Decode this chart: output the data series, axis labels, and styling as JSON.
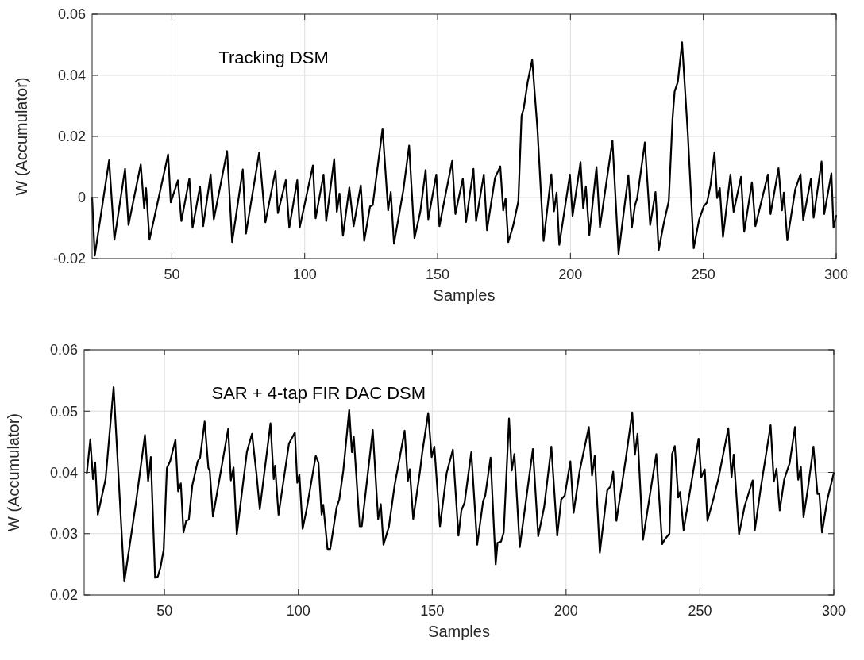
{
  "chart_data": [
    {
      "type": "line",
      "xlabel": "Samples",
      "ylabel": "W (Accumulator)",
      "annotations": [
        "Tracking DSM"
      ],
      "xlim": [
        20,
        300
      ],
      "xticks": [
        50,
        100,
        150,
        200,
        250,
        300
      ],
      "ylim": [
        -0.02,
        0.06
      ],
      "yticks": [
        -0.02,
        0,
        0.02,
        0.04,
        0.06
      ],
      "grid": true,
      "line_style": "solid",
      "marker": "none",
      "series": [
        {
          "color": "#000000",
          "x": [
            20,
            21,
            26.4,
            28.4,
            32.4,
            33.7,
            38.3,
            39.6,
            40.3,
            41.6,
            48.6,
            49.6,
            52.3,
            53.6,
            56.6,
            57.8,
            60.6,
            61.8,
            64.6,
            65.8,
            70.8,
            72.7,
            76.7,
            77.9,
            82.9,
            85.2,
            89,
            89.9,
            92.9,
            94.2,
            97.2,
            98.1,
            103.1,
            104.1,
            107.1,
            108.1,
            111.1,
            112.1,
            113.1,
            114.4,
            116.8,
            118.4,
            121.1,
            122.4,
            124.6,
            125.6,
            129.3,
            131.4,
            132.4,
            133.6,
            137.1,
            139.3,
            141.3,
            143.5,
            145.5,
            146.5,
            149.5,
            150.7,
            152.5,
            155.5,
            156.7,
            159.5,
            160.7,
            163.5,
            164.5,
            167.4,
            168.6,
            171.6,
            173.6,
            174.7,
            175.6,
            176.6,
            178.4,
            180.4,
            181.6,
            182.4,
            183.9,
            185.6,
            187.6,
            189.9,
            192.8,
            193.8,
            194.8,
            195.8,
            199.8,
            200.8,
            203.8,
            204.8,
            205.8,
            207.1,
            209.8,
            211.1,
            215.8,
            218.1,
            221.8,
            223.1,
            224.3,
            225.1,
            228,
            230,
            232,
            233.2,
            235.2,
            237,
            238.4,
            239.2,
            240.4,
            242,
            244.2,
            246.4,
            248.4,
            250.2,
            251.4,
            252.7,
            254.2,
            255.2,
            256.2,
            257.4,
            260.2,
            261.4,
            264.2,
            265.4,
            268.3,
            269.6,
            274.3,
            275.3,
            278.3,
            279.6,
            280.3,
            281.6,
            284.6,
            286.6,
            287.6,
            290.5,
            291.5,
            294.5,
            295.5,
            298.2,
            299,
            300
          ],
          "values": [
            0.0,
            -0.019,
            0.0122,
            -0.0138,
            0.0094,
            -0.009,
            0.0108,
            -0.0036,
            0.0031,
            -0.0138,
            0.0141,
            -0.0016,
            0.0056,
            -0.0077,
            0.0062,
            -0.0099,
            0.0036,
            -0.0094,
            0.0076,
            -0.0071,
            0.0152,
            -0.0146,
            0.0092,
            -0.0118,
            0.0148,
            -0.0081,
            0.0088,
            -0.0051,
            0.0057,
            -0.0099,
            0.0057,
            -0.0099,
            0.0105,
            -0.0068,
            0.0075,
            -0.0077,
            0.0126,
            -0.0047,
            0.0013,
            -0.0125,
            0.0033,
            -0.0094,
            0.004,
            -0.0142,
            -0.0029,
            -0.0025,
            0.0226,
            -0.0042,
            0.0018,
            -0.0151,
            0.0023,
            0.017,
            -0.0133,
            -0.0047,
            0.009,
            -0.0071,
            0.0075,
            -0.0094,
            -0.0012,
            0.012,
            -0.0054,
            0.0062,
            -0.008,
            0.0094,
            -0.0077,
            0.0075,
            -0.0107,
            0.0064,
            0.0102,
            -0.0042,
            -0.0003,
            -0.0146,
            -0.0094,
            -0.0012,
            0.0267,
            0.0291,
            0.0378,
            0.0451,
            0.0222,
            -0.0142,
            0.0076,
            -0.0045,
            0.0016,
            -0.0155,
            0.0075,
            -0.006,
            0.0116,
            -0.0036,
            0.0036,
            -0.0123,
            0.01,
            -0.0097,
            0.0187,
            -0.0185,
            0.0073,
            -0.0099,
            -0.0025,
            -0.0003,
            0.018,
            -0.009,
            0.0018,
            -0.0172,
            -0.0081,
            -0.0012,
            0.0256,
            0.0347,
            0.0378,
            0.0508,
            0.0204,
            -0.0166,
            -0.0073,
            -0.0028,
            -0.0016,
            0.004,
            0.0148,
            -0.0002,
            0.0031,
            -0.0129,
            0.0075,
            -0.0047,
            0.0068,
            -0.0112,
            0.005,
            -0.0094,
            0.0075,
            -0.0054,
            0.0096,
            -0.0042,
            0.0016,
            -0.014,
            0.0027,
            0.0076,
            -0.0073,
            0.0062,
            -0.0066,
            0.0118,
            -0.0054,
            0.0079,
            -0.0099,
            -0.006
          ]
        }
      ]
    },
    {
      "type": "line",
      "xlabel": "Samples",
      "ylabel": "W (Accumulator)",
      "annotations": [
        "SAR + 4-tap FIR DAC DSM"
      ],
      "xlim": [
        20,
        300
      ],
      "xticks": [
        50,
        100,
        150,
        200,
        250,
        300
      ],
      "ylim": [
        0.02,
        0.06
      ],
      "yticks": [
        0.02,
        0.03,
        0.04,
        0.05,
        0.06
      ],
      "grid": true,
      "line_style": "solid",
      "marker": "none",
      "series": [
        {
          "color": "#000000",
          "x": [
            21,
            22.3,
            23.3,
            24.1,
            25.1,
            28,
            31,
            35,
            39.3,
            42.7,
            43.9,
            44.9,
            46.5,
            47.5,
            48.5,
            49.7,
            50.9,
            52.1,
            54.1,
            55.1,
            56.1,
            57.1,
            58.1,
            59.1,
            60.4,
            62.4,
            63.3,
            65,
            66.4,
            66.9,
            68.1,
            73.8,
            74.8,
            75.8,
            77,
            80.8,
            82.7,
            84.4,
            85.6,
            89.6,
            90.8,
            91.3,
            92.6,
            96.5,
            98.7,
            99.6,
            100.4,
            101.6,
            103.1,
            106.5,
            107.5,
            108.7,
            109.3,
            110.9,
            111.9,
            114.3,
            115.3,
            116.8,
            119,
            120,
            120.7,
            122.9,
            123.7,
            127.8,
            129.8,
            130.8,
            131.8,
            133.8,
            136,
            139.7,
            140.9,
            141.6,
            142.9,
            145.4,
            146.3,
            148.5,
            149.8,
            150.8,
            152.9,
            155.4,
            157.7,
            159.8,
            160.9,
            162.1,
            164.6,
            166.8,
            169,
            169.8,
            171.8,
            173.7,
            174.4,
            175.7,
            176.7,
            178.7,
            179.7,
            180.7,
            182.7,
            187.6,
            189.6,
            191.8,
            194.5,
            196.7,
            198.2,
            199.5,
            201.6,
            202.8,
            205.1,
            208.5,
            209.7,
            210.7,
            212.6,
            215.4,
            216.6,
            217.6,
            218.8,
            222.3,
            224.7,
            225.7,
            226.7,
            228.7,
            233.7,
            235.9,
            236.9,
            238.6,
            239.6,
            240.6,
            241.9,
            242.6,
            243.9,
            249.5,
            250.5,
            251.8,
            252.8,
            255.1,
            256.9,
            260.6,
            261.8,
            262.6,
            264.6,
            266.7,
            269.7,
            270.5,
            272.7,
            276.4,
            277.6,
            278.6,
            279.8,
            281.5,
            283.5,
            285.5,
            286.7,
            287.7,
            288.7,
            290.3,
            292.4,
            293.9,
            294.6,
            295.6,
            297.6,
            300
          ],
          "values": [
            0.0399,
            0.0454,
            0.0389,
            0.0416,
            0.0331,
            0.0389,
            0.0539,
            0.0222,
            0.0349,
            0.0461,
            0.0386,
            0.0425,
            0.0228,
            0.023,
            0.0245,
            0.0274,
            0.0407,
            0.0418,
            0.0453,
            0.0369,
            0.0382,
            0.0302,
            0.0321,
            0.0323,
            0.0379,
            0.0418,
            0.0424,
            0.0483,
            0.0407,
            0.0403,
            0.0328,
            0.0471,
            0.0387,
            0.0408,
            0.0299,
            0.0434,
            0.0463,
            0.0396,
            0.034,
            0.048,
            0.0389,
            0.0411,
            0.0331,
            0.0447,
            0.0465,
            0.0383,
            0.0396,
            0.0308,
            0.034,
            0.0427,
            0.0416,
            0.0331,
            0.0347,
            0.0275,
            0.0275,
            0.0343,
            0.0356,
            0.0403,
            0.0502,
            0.0433,
            0.0458,
            0.0312,
            0.0312,
            0.0469,
            0.0324,
            0.0348,
            0.0282,
            0.0311,
            0.038,
            0.0468,
            0.0386,
            0.0405,
            0.0324,
            0.0401,
            0.0433,
            0.0497,
            0.0425,
            0.0442,
            0.0312,
            0.0399,
            0.0437,
            0.0297,
            0.0338,
            0.0351,
            0.0433,
            0.0282,
            0.0353,
            0.0362,
            0.0424,
            0.025,
            0.0285,
            0.0287,
            0.0302,
            0.0488,
            0.0403,
            0.043,
            0.0278,
            0.0438,
            0.0296,
            0.0343,
            0.0442,
            0.0297,
            0.0356,
            0.0362,
            0.0418,
            0.0334,
            0.0403,
            0.0474,
            0.0395,
            0.0427,
            0.0269,
            0.0371,
            0.0377,
            0.0401,
            0.0321,
            0.0422,
            0.0498,
            0.0429,
            0.0463,
            0.029,
            0.043,
            0.0283,
            0.0291,
            0.03,
            0.043,
            0.0443,
            0.0359,
            0.0368,
            0.0306,
            0.0455,
            0.0392,
            0.0405,
            0.0321,
            0.0358,
            0.039,
            0.0472,
            0.0392,
            0.0429,
            0.0299,
            0.0345,
            0.0387,
            0.0306,
            0.0374,
            0.0477,
            0.0385,
            0.0406,
            0.0338,
            0.0389,
            0.0415,
            0.0474,
            0.0388,
            0.0409,
            0.0327,
            0.0373,
            0.0442,
            0.0365,
            0.0365,
            0.0302,
            0.0356,
            0.0399
          ]
        }
      ]
    }
  ]
}
